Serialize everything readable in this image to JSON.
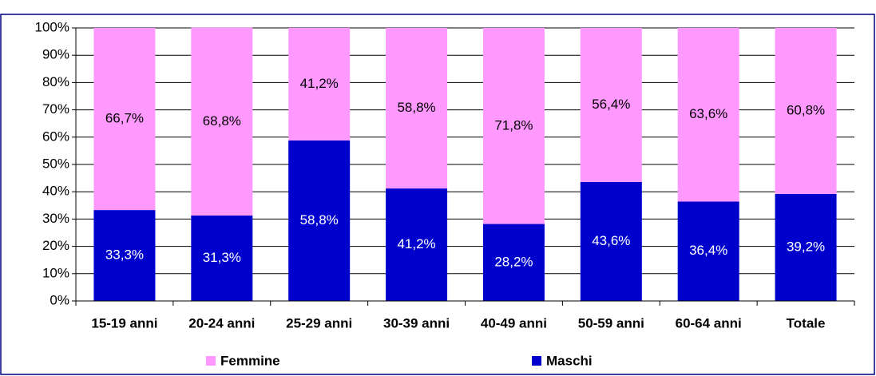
{
  "chart_data": {
    "type": "stacked-bar",
    "categories": [
      "15-19 anni",
      "20-24 anni",
      "25-29 anni",
      "30-39 anni",
      "40-49 anni",
      "50-59 anni",
      "60-64 anni",
      "Totale"
    ],
    "series": [
      {
        "name": "Femmine",
        "color": "#ff99ff",
        "values": [
          66.7,
          68.8,
          41.2,
          58.8,
          71.8,
          56.4,
          63.6,
          60.8
        ],
        "value_labels": [
          "66,7%",
          "68,8%",
          "41,2%",
          "58,8%",
          "71,8%",
          "56,4%",
          "63,6%",
          "60,8%"
        ]
      },
      {
        "name": "Maschi",
        "color": "#0000cc",
        "values": [
          33.3,
          31.3,
          58.8,
          41.2,
          28.2,
          43.6,
          36.4,
          39.2
        ],
        "value_labels": [
          "33,3%",
          "31,3%",
          "58,8%",
          "41,2%",
          "28,2%",
          "43,6%",
          "36,4%",
          "39,2%"
        ]
      }
    ],
    "ylim": [
      0,
      100
    ],
    "yticks": [
      {
        "value": 0,
        "label": "0%"
      },
      {
        "value": 10,
        "label": "10%"
      },
      {
        "value": 20,
        "label": "20%"
      },
      {
        "value": 30,
        "label": "30%"
      },
      {
        "value": 40,
        "label": "40%"
      },
      {
        "value": 50,
        "label": "50%"
      },
      {
        "value": 60,
        "label": "60%"
      },
      {
        "value": 70,
        "label": "70%"
      },
      {
        "value": 80,
        "label": "80%"
      },
      {
        "value": 90,
        "label": "90%"
      },
      {
        "value": 100,
        "label": "100%"
      }
    ],
    "grid": true,
    "legend": "bottom"
  }
}
